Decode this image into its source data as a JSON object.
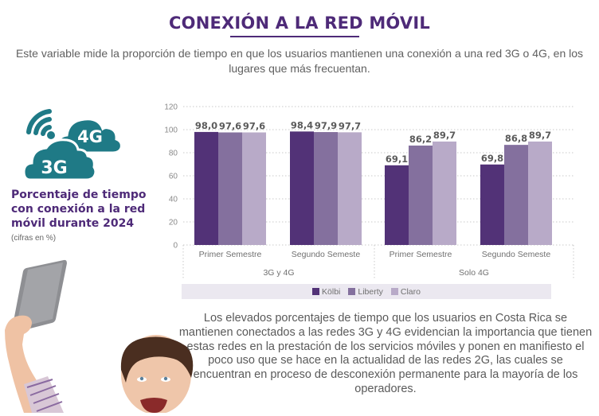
{
  "header": {
    "title": "CONEXIÓN A LA RED MÓVIL",
    "intro": "Este variable mide la proporción de tiempo en que los usuarios mantienen una conexión a una red 3G o 4G, en los lugares que más frecuentan."
  },
  "sidebar": {
    "icon_labels": {
      "top_cloud": "4G",
      "bottom_cloud": "3G"
    },
    "heading": "Porcentaje de tiempo con conexión a la red móvil durante 2024",
    "subheading": "(cifras en %)",
    "icon_color": "#1f7a86"
  },
  "chart_data": {
    "type": "bar",
    "title": "Porcentaje de tiempo con conexión a la red móvil durante 2024",
    "xlabel": "",
    "ylabel": "",
    "ylim": [
      0,
      120
    ],
    "yticks": [
      "0",
      "20",
      "40",
      "60",
      "80",
      "100",
      "120"
    ],
    "grid": true,
    "legend_position": "bottom",
    "groups": [
      {
        "label": "3G y 4G",
        "categories": [
          "Primer Semestre",
          "Segundo Semeste"
        ]
      },
      {
        "label": "Solo 4G",
        "categories": [
          "Primer Semestre",
          "Segundo Semeste"
        ]
      }
    ],
    "categories": [
      "Primer Semestre",
      "Segundo Semeste",
      "Primer Semestre",
      "Segundo Semeste"
    ],
    "series": [
      {
        "name": "Kölbi",
        "color": "#523277",
        "values": [
          98.0,
          98.4,
          69.1,
          69.8
        ],
        "labels": [
          "98,0",
          "98,4",
          "69,1",
          "69,8"
        ]
      },
      {
        "name": "Liberty",
        "color": "#84709e",
        "values": [
          97.6,
          97.9,
          86.2,
          86.8
        ],
        "labels": [
          "97,6",
          "97,9",
          "86,2",
          "86,8"
        ]
      },
      {
        "name": "Claro",
        "color": "#b8aac8",
        "values": [
          97.6,
          97.7,
          89.7,
          89.7
        ],
        "labels": [
          "97,6",
          "97,7",
          "89,7",
          "89,7"
        ]
      }
    ]
  },
  "footer": {
    "body": "Los elevados porcentajes de tiempo que los usuarios en Costa Rica se mantienen conectados a las redes 3G y 4G evidencian la importancia que tienen estas redes en la prestación de los servicios móviles y ponen en manifiesto el poco uso que se hace en la actualidad de las redes 2G, las cuales se encuentran en proceso de desconexión permanente para la mayoría de los operadores."
  }
}
